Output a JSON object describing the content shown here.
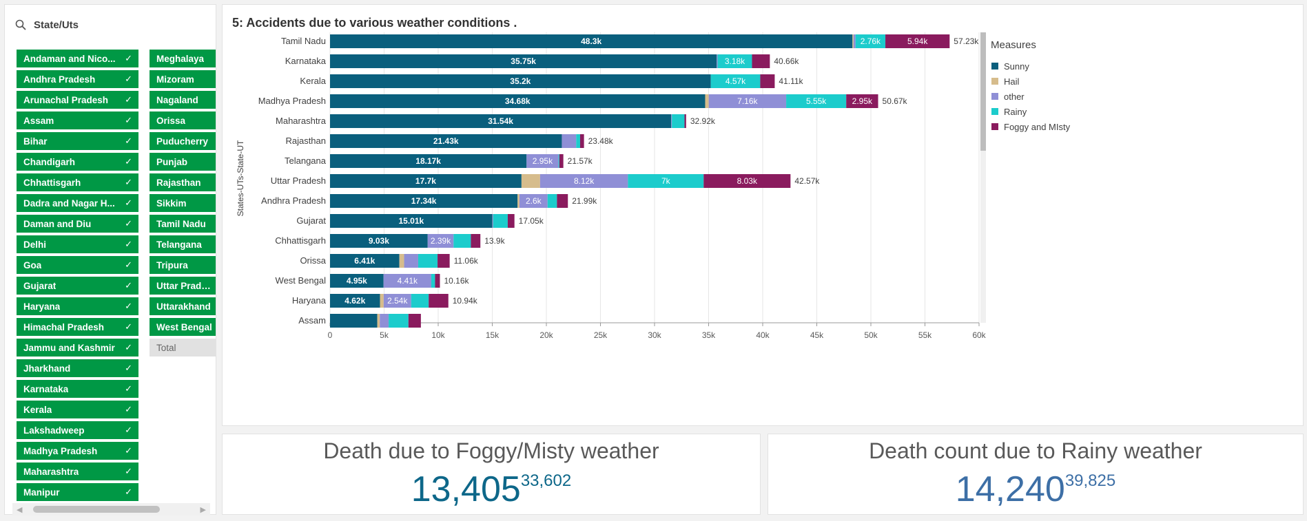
{
  "filter": {
    "title": "State/Uts",
    "check_glyph": "✓",
    "column1": [
      {
        "label": "Andaman and Nico..."
      },
      {
        "label": "Andhra Pradesh"
      },
      {
        "label": "Arunachal Pradesh"
      },
      {
        "label": "Assam"
      },
      {
        "label": "Bihar"
      },
      {
        "label": "Chandigarh"
      },
      {
        "label": "Chhattisgarh"
      },
      {
        "label": "Dadra and Nagar H..."
      },
      {
        "label": "Daman and Diu"
      },
      {
        "label": "Delhi"
      },
      {
        "label": "Goa"
      },
      {
        "label": "Gujarat"
      },
      {
        "label": "Haryana"
      },
      {
        "label": "Himachal Pradesh"
      },
      {
        "label": "Jammu and Kashmir"
      },
      {
        "label": "Jharkhand"
      },
      {
        "label": "Karnataka"
      },
      {
        "label": "Kerala"
      },
      {
        "label": "Lakshadweep"
      },
      {
        "label": "Madhya Pradesh"
      },
      {
        "label": "Maharashtra"
      },
      {
        "label": "Manipur"
      }
    ],
    "column2": [
      {
        "label": "Meghalaya",
        "selected": true
      },
      {
        "label": "Mizoram",
        "selected": true
      },
      {
        "label": "Nagaland",
        "selected": true
      },
      {
        "label": "Orissa",
        "selected": true
      },
      {
        "label": "Puducherry",
        "selected": true
      },
      {
        "label": "Punjab",
        "selected": true
      },
      {
        "label": "Rajasthan",
        "selected": true
      },
      {
        "label": "Sikkim",
        "selected": true
      },
      {
        "label": "Tamil Nadu",
        "selected": true
      },
      {
        "label": "Telangana",
        "selected": true
      },
      {
        "label": "Tripura",
        "selected": true
      },
      {
        "label": "Uttar Pradesh",
        "selected": true
      },
      {
        "label": "Uttarakhand",
        "selected": true
      },
      {
        "label": "West Bengal",
        "selected": true
      },
      {
        "label": "Total",
        "selected": false
      }
    ]
  },
  "chart": {
    "title": "5: Accidents due to various weather conditions .",
    "legend_title": "Measures"
  },
  "chart_data": {
    "type": "bar",
    "orientation": "horizontal",
    "stacked": true,
    "title": "5: Accidents due to various weather conditions .",
    "ylabel": "States-UTs-State-UT",
    "xlabel": "",
    "xlim": [
      0,
      60000
    ],
    "xticks": [
      0,
      5000,
      10000,
      15000,
      20000,
      25000,
      30000,
      35000,
      40000,
      45000,
      50000,
      55000,
      60000
    ],
    "xtick_labels": [
      "0",
      "5k",
      "10k",
      "15k",
      "20k",
      "25k",
      "30k",
      "35k",
      "40k",
      "45k",
      "50k",
      "55k",
      "60k"
    ],
    "grid": true,
    "legend_position": "right",
    "series": [
      {
        "name": "Sunny",
        "color": "#0a5f7d"
      },
      {
        "name": "Hail",
        "color": "#d6bc8c"
      },
      {
        "name": "other",
        "color": "#8f8fd6"
      },
      {
        "name": "Rainy",
        "color": "#1ccccc"
      },
      {
        "name": "Foggy and MIsty",
        "color": "#8a1b5e"
      }
    ],
    "rows": [
      {
        "category": "Tamil Nadu",
        "values": [
          48300,
          100,
          180,
          2760,
          5940
        ],
        "labels": [
          "48.3k",
          "",
          "",
          "2.76k",
          "5.94k"
        ],
        "total": "57.23k"
      },
      {
        "category": "Karnataka",
        "values": [
          35750,
          0,
          80,
          3180,
          1650
        ],
        "labels": [
          "35.75k",
          "",
          "",
          "3.18k",
          ""
        ],
        "total": "40.66k"
      },
      {
        "category": "Kerala",
        "values": [
          35200,
          0,
          0,
          4570,
          1340
        ],
        "labels": [
          "35.2k",
          "",
          "",
          "4.57k",
          ""
        ],
        "total": "41.11k"
      },
      {
        "category": "Madhya Pradesh",
        "values": [
          34680,
          330,
          7160,
          5550,
          2950
        ],
        "labels": [
          "34.68k",
          "",
          "7.16k",
          "5.55k",
          "2.95k"
        ],
        "total": "50.67k"
      },
      {
        "category": "Maharashtra",
        "values": [
          31540,
          0,
          60,
          1170,
          150
        ],
        "labels": [
          "31.54k",
          "",
          "",
          "",
          ""
        ],
        "total": "32.92k"
      },
      {
        "category": "Rajasthan",
        "values": [
          21430,
          0,
          1330,
          360,
          360
        ],
        "labels": [
          "21.43k",
          "",
          "",
          "",
          ""
        ],
        "total": "23.48k"
      },
      {
        "category": "Telangana",
        "values": [
          18170,
          0,
          2950,
          80,
          370
        ],
        "labels": [
          "18.17k",
          "",
          "2.95k",
          "",
          ""
        ],
        "total": "21.57k"
      },
      {
        "category": "Uttar Pradesh",
        "values": [
          17700,
          1720,
          8120,
          7000,
          8030
        ],
        "labels": [
          "17.7k",
          "",
          "8.12k",
          "7k",
          "8.03k"
        ],
        "total": "42.57k"
      },
      {
        "category": "Andhra Pradesh",
        "values": [
          17340,
          170,
          2600,
          870,
          1010
        ],
        "labels": [
          "17.34k",
          "",
          "2.6k",
          "",
          ""
        ],
        "total": "21.99k"
      },
      {
        "category": "Gujarat",
        "values": [
          15010,
          0,
          70,
          1350,
          620
        ],
        "labels": [
          "15.01k",
          "",
          "",
          "",
          ""
        ],
        "total": "17.05k"
      },
      {
        "category": "Chhattisgarh",
        "values": [
          9030,
          0,
          2390,
          1600,
          880
        ],
        "labels": [
          "9.03k",
          "",
          "2.39k",
          "",
          ""
        ],
        "total": "13.9k"
      },
      {
        "category": "Orissa",
        "values": [
          6410,
          440,
          1300,
          1790,
          1120
        ],
        "labels": [
          "6.41k",
          "",
          "",
          "",
          ""
        ],
        "total": "11.06k"
      },
      {
        "category": "West Bengal",
        "values": [
          4950,
          0,
          4410,
          350,
          450
        ],
        "labels": [
          "4.95k",
          "",
          "4.41k",
          "",
          ""
        ],
        "total": "10.16k"
      },
      {
        "category": "Haryana",
        "values": [
          4620,
          340,
          2540,
          1620,
          1820
        ],
        "labels": [
          "4.62k",
          "",
          "2.54k",
          "",
          ""
        ],
        "total": "10.94k"
      },
      {
        "category": "Assam",
        "values": [
          4370,
          230,
          820,
          1830,
          1150
        ],
        "labels": [
          "",
          "",
          "",
          "",
          ""
        ],
        "total": ""
      }
    ]
  },
  "kpi_foggy": {
    "title": "Death due to Foggy/Misty weather",
    "value": "13,405",
    "secondary": "33,602"
  },
  "kpi_rainy": {
    "title": "Death count due to Rainy weather",
    "value": "14,240",
    "secondary": "39,825"
  }
}
